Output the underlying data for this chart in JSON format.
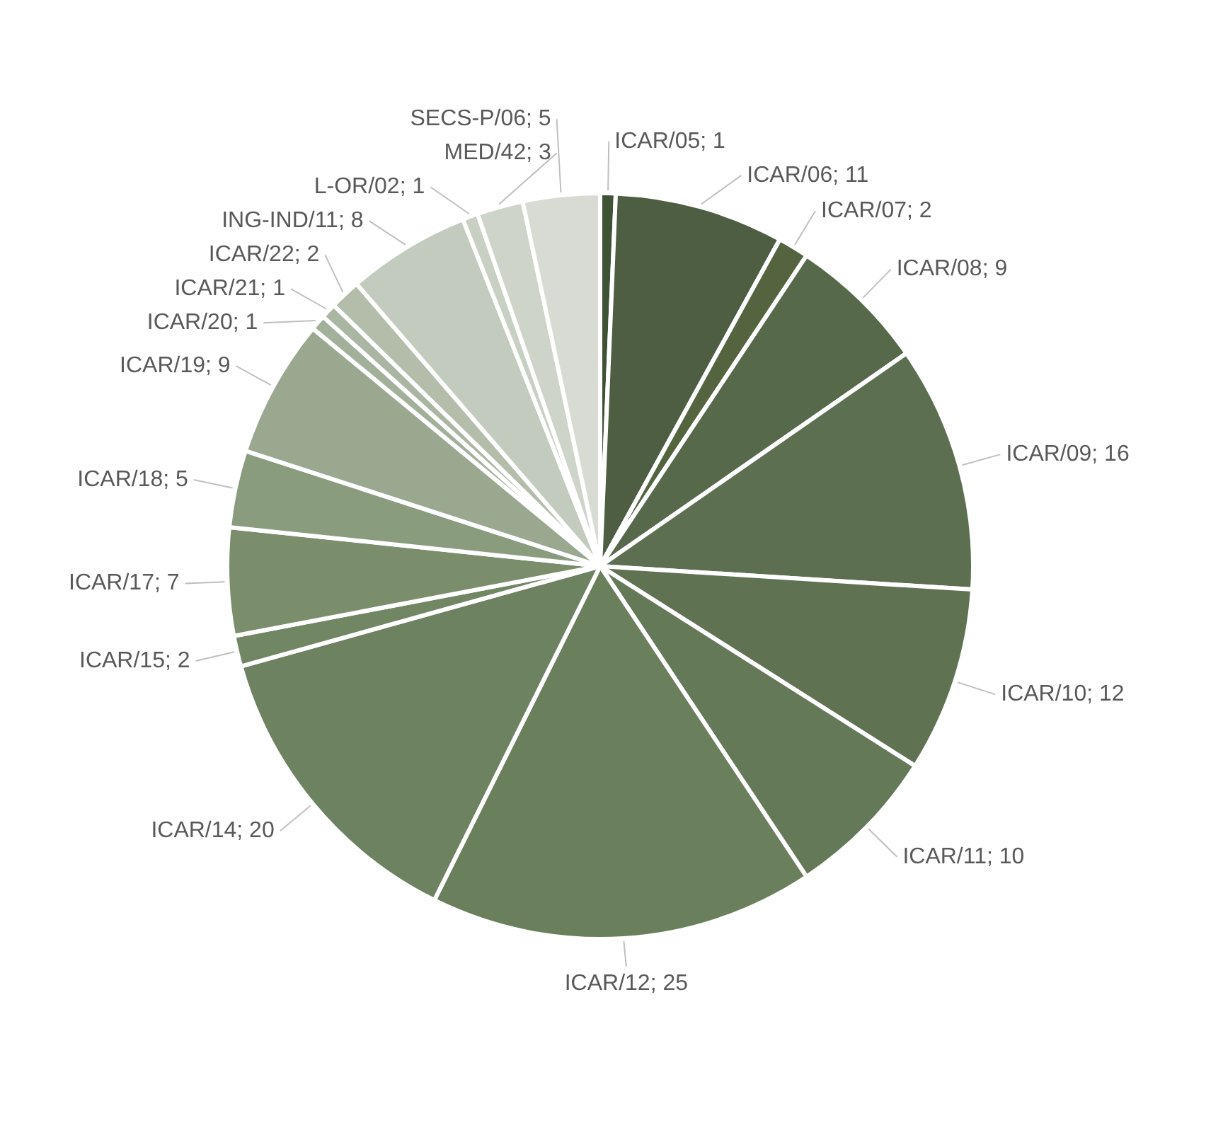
{
  "chart_data": {
    "type": "pie",
    "categories": [
      "ICAR/05",
      "ICAR/06",
      "ICAR/07",
      "ICAR/08",
      "ICAR/09",
      "ICAR/10",
      "ICAR/11",
      "ICAR/12",
      "ICAR/14",
      "ICAR/15",
      "ICAR/17",
      "ICAR/18",
      "ICAR/19",
      "ICAR/20",
      "ICAR/21",
      "ICAR/22",
      "ING-IND/11",
      "L-OR/02",
      "MED/42",
      "SECS-P/06"
    ],
    "values": [
      1,
      11,
      2,
      9,
      16,
      12,
      10,
      25,
      20,
      2,
      7,
      5,
      9,
      1,
      1,
      2,
      8,
      1,
      3,
      5
    ],
    "value_labels": [
      "; 1",
      "; 11",
      "; 2",
      "; 9",
      "; 16",
      "; 12",
      "; 10",
      "; 25",
      "; 20",
      "; 2",
      "; 7",
      "; 5",
      "; 9",
      "; 1",
      "; 1",
      "; 2",
      "; 8",
      "; 1",
      "; 3",
      "; 5"
    ],
    "colors": [
      "#3e5234",
      "#4e5e42",
      "#53643f",
      "#57694b",
      "#5c6f50",
      "#5f7353",
      "#647957",
      "#6a7f5c",
      "#6d8260",
      "#718663",
      "#7a8e6c",
      "#8a9c7e",
      "#9aa88f",
      "#a3b099",
      "#aab6a1",
      "#b3bdaa",
      "#c2cbbe",
      "#c8cfc3",
      "#cfd4cb",
      "#d8dbd4"
    ]
  }
}
